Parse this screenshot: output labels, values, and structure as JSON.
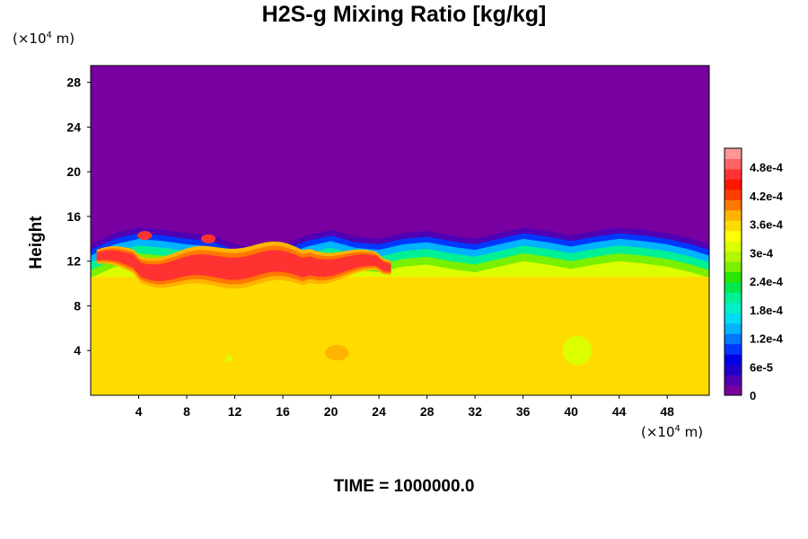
{
  "footer": {
    "time_label": "TIME = 1000000.0"
  },
  "chart_data": {
    "type": "heatmap",
    "title": "H2S-g Mixing Ratio [kg/kg]",
    "ylabel": "Height",
    "x_unit": {
      "base": "(×10",
      "exp": "4",
      "rest": " m)"
    },
    "y_unit": {
      "base": "(×10",
      "exp": "4",
      "rest": " m)"
    },
    "xlim": [
      0,
      51.5
    ],
    "ylim": [
      0,
      29.5
    ],
    "x_ticks": [
      4,
      8,
      12,
      16,
      20,
      24,
      28,
      32,
      36,
      40,
      44,
      48
    ],
    "y_ticks": [
      4,
      8,
      12,
      16,
      20,
      24,
      28
    ],
    "colorbar": {
      "min": 0,
      "max": 0.00052,
      "tick_values": [
        0,
        6e-05,
        0.00012,
        0.00018,
        0.00024,
        0.0003,
        0.00036,
        0.00042,
        0.00048
      ],
      "tick_labels": [
        "0",
        "6e-5",
        "1.2e-4",
        "1.8e-4",
        "2.4e-4",
        "3e-4",
        "3.6e-4",
        "4.2e-4",
        "4.8e-4"
      ],
      "colors": [
        "#7800a0",
        "#5000b4",
        "#2000c8",
        "#0000e6",
        "#0038ff",
        "#0078ff",
        "#00b4ff",
        "#00dcf0",
        "#00f0c8",
        "#00f096",
        "#00e650",
        "#28e600",
        "#78f000",
        "#b4f500",
        "#dcff00",
        "#ffff00",
        "#ffdc00",
        "#ffb400",
        "#ff7800",
        "#ff3c00",
        "#ff1400",
        "#ff3232",
        "#ff6464",
        "#ff9696"
      ]
    },
    "background_value": 0.000348,
    "top_value": 0,
    "profile": [
      {
        "x": 0,
        "top": 13.5
      },
      {
        "x": 2,
        "top": 14.5
      },
      {
        "x": 4,
        "top": 15.0
      },
      {
        "x": 6,
        "top": 14.8
      },
      {
        "x": 8,
        "top": 14.5
      },
      {
        "x": 10,
        "top": 14.3
      },
      {
        "x": 12,
        "top": 13.5
      },
      {
        "x": 14,
        "top": 13.0
      },
      {
        "x": 16,
        "top": 13.5
      },
      {
        "x": 18,
        "top": 14.3
      },
      {
        "x": 20,
        "top": 14.8
      },
      {
        "x": 22,
        "top": 14.2
      },
      {
        "x": 24,
        "top": 14.0
      },
      {
        "x": 26,
        "top": 14.5
      },
      {
        "x": 28,
        "top": 14.7
      },
      {
        "x": 30,
        "top": 14.3
      },
      {
        "x": 32,
        "top": 14.0
      },
      {
        "x": 34,
        "top": 14.5
      },
      {
        "x": 36,
        "top": 15.0
      },
      {
        "x": 38,
        "top": 14.7
      },
      {
        "x": 40,
        "top": 14.3
      },
      {
        "x": 42,
        "top": 14.7
      },
      {
        "x": 44,
        "top": 15.0
      },
      {
        "x": 46,
        "top": 14.8
      },
      {
        "x": 48,
        "top": 14.5
      },
      {
        "x": 50,
        "top": 14.0
      },
      {
        "x": 51.5,
        "top": 13.5
      }
    ],
    "high_band": {
      "x_start": 0.5,
      "x_end": 25,
      "center": 11.5,
      "half_width": 1.0,
      "value": 0.00046
    },
    "features": [
      {
        "x": 4.5,
        "y": 14.3,
        "rx": 0.6,
        "ry": 0.4,
        "value": 0.00047
      },
      {
        "x": 9.8,
        "y": 14.0,
        "rx": 0.6,
        "ry": 0.4,
        "value": 0.00047
      },
      {
        "x": 20.5,
        "y": 3.8,
        "rx": 1.0,
        "ry": 0.7,
        "value": 0.00038
      },
      {
        "x": 40.5,
        "y": 4.0,
        "rx": 1.2,
        "ry": 1.3,
        "value": 0.00031
      },
      {
        "x": 11.5,
        "y": 3.3,
        "rx": 0.3,
        "ry": 0.3,
        "value": 0.00031
      }
    ]
  }
}
